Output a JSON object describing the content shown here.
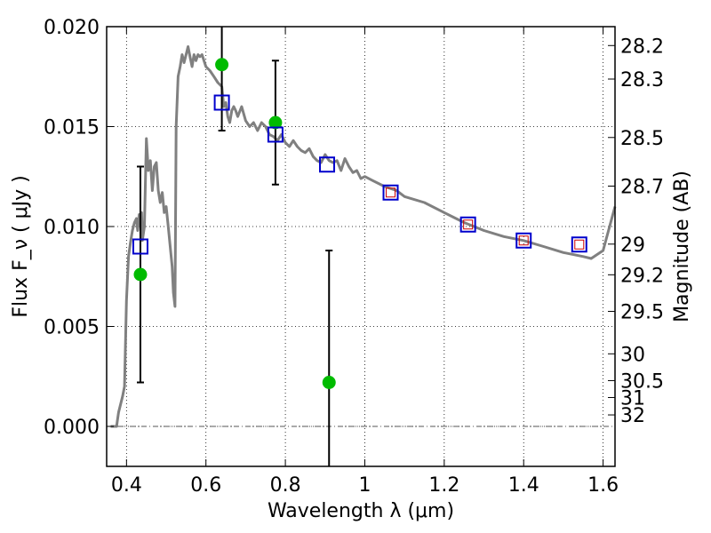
{
  "chart_data": {
    "type": "scatter",
    "xlabel": "Wavelength  λ (μm)",
    "ylabel_left": "Flux  F_ν  ( μJy )",
    "ylabel_right": "Magnitude (AB)",
    "xlim": [
      0.35,
      1.63
    ],
    "ylim": [
      -0.002,
      0.02
    ],
    "grid": true,
    "x_ticks": [
      {
        "value": 0.4,
        "label": "0.4"
      },
      {
        "value": 0.6,
        "label": "0.6"
      },
      {
        "value": 0.8,
        "label": "0.8"
      },
      {
        "value": 1.0,
        "label": "1"
      },
      {
        "value": 1.2,
        "label": "1.2"
      },
      {
        "value": 1.4,
        "label": "1.4"
      },
      {
        "value": 1.6,
        "label": "1.6"
      }
    ],
    "y_ticks": [
      {
        "value": 0.0,
        "label": "0.000"
      },
      {
        "value": 0.005,
        "label": "0.005"
      },
      {
        "value": 0.01,
        "label": "0.010"
      },
      {
        "value": 0.015,
        "label": "0.015"
      },
      {
        "value": 0.02,
        "label": "0.020"
      }
    ],
    "mag_ticks": [
      {
        "mag": 28.2,
        "label": "28.2"
      },
      {
        "mag": 28.3,
        "label": "28.3"
      },
      {
        "mag": 28.5,
        "label": "28.5"
      },
      {
        "mag": 28.7,
        "label": "28.7"
      },
      {
        "mag": 29.0,
        "label": "29"
      },
      {
        "mag": 29.2,
        "label": "29.2"
      },
      {
        "mag": 29.5,
        "label": "29.5"
      },
      {
        "mag": 30.0,
        "label": "30"
      },
      {
        "mag": 30.5,
        "label": "30.5"
      },
      {
        "mag": 31.0,
        "label": "31"
      },
      {
        "mag": 32.0,
        "label": "32"
      }
    ],
    "model_sed": {
      "color": "#808080",
      "x": [
        0.36,
        0.375,
        0.377,
        0.38,
        0.39,
        0.395,
        0.4,
        0.405,
        0.41,
        0.415,
        0.42,
        0.425,
        0.428,
        0.432,
        0.435,
        0.438,
        0.44,
        0.445,
        0.45,
        0.455,
        0.46,
        0.465,
        0.47,
        0.475,
        0.48,
        0.485,
        0.49,
        0.495,
        0.5,
        0.505,
        0.51,
        0.515,
        0.518,
        0.522,
        0.525,
        0.53,
        0.535,
        0.54,
        0.545,
        0.55,
        0.555,
        0.56,
        0.565,
        0.57,
        0.575,
        0.58,
        0.585,
        0.59,
        0.6,
        0.61,
        0.62,
        0.63,
        0.64,
        0.645,
        0.65,
        0.655,
        0.66,
        0.665,
        0.67,
        0.675,
        0.68,
        0.69,
        0.7,
        0.71,
        0.72,
        0.73,
        0.74,
        0.75,
        0.76,
        0.77,
        0.78,
        0.79,
        0.8,
        0.81,
        0.82,
        0.83,
        0.84,
        0.85,
        0.86,
        0.87,
        0.88,
        0.89,
        0.9,
        0.91,
        0.92,
        0.93,
        0.94,
        0.95,
        0.96,
        0.97,
        0.98,
        0.99,
        1.0,
        1.02,
        1.05,
        1.08,
        1.1,
        1.15,
        1.2,
        1.25,
        1.3,
        1.35,
        1.4,
        1.45,
        1.5,
        1.55,
        1.57,
        1.6,
        1.63
      ],
      "y": [
        0.0,
        0.0,
        0.0003,
        0.0007,
        0.0015,
        0.002,
        0.0063,
        0.0085,
        0.0092,
        0.0098,
        0.0102,
        0.0104,
        0.0098,
        0.0106,
        0.0102,
        0.0107,
        0.0093,
        0.01,
        0.0144,
        0.0128,
        0.0133,
        0.0118,
        0.013,
        0.0132,
        0.0118,
        0.0112,
        0.0117,
        0.0107,
        0.011,
        0.01,
        0.009,
        0.008,
        0.0067,
        0.006,
        0.015,
        0.0175,
        0.018,
        0.0186,
        0.0182,
        0.0186,
        0.019,
        0.0185,
        0.018,
        0.0186,
        0.0183,
        0.0186,
        0.0185,
        0.0186,
        0.018,
        0.0178,
        0.0175,
        0.0172,
        0.017,
        0.016,
        0.0162,
        0.0155,
        0.0152,
        0.0158,
        0.016,
        0.0158,
        0.0155,
        0.016,
        0.0153,
        0.015,
        0.0152,
        0.0148,
        0.0152,
        0.015,
        0.0146,
        0.0145,
        0.0143,
        0.0146,
        0.0142,
        0.014,
        0.0143,
        0.014,
        0.0138,
        0.0137,
        0.0139,
        0.0135,
        0.0133,
        0.0132,
        0.0136,
        0.0133,
        0.0132,
        0.0133,
        0.0128,
        0.0134,
        0.013,
        0.0127,
        0.0128,
        0.0124,
        0.0125,
        0.0123,
        0.012,
        0.0118,
        0.0115,
        0.0112,
        0.0107,
        0.0102,
        0.0098,
        0.0095,
        0.0093,
        0.009,
        0.0087,
        0.0085,
        0.0084,
        0.0088,
        0.011
      ]
    },
    "observed": {
      "marker": "circle",
      "color": "#00bb00",
      "points": [
        {
          "x": 0.435,
          "y": 0.0076,
          "err": 0.0054
        },
        {
          "x": 0.64,
          "y": 0.0181,
          "err": 0.0033
        },
        {
          "x": 0.775,
          "y": 0.0152,
          "err": 0.0031
        },
        {
          "x": 0.91,
          "y": 0.0022,
          "err": 0.0066
        }
      ]
    },
    "model_photometry": {
      "marker": "square",
      "color": "#0000cc",
      "points": [
        {
          "x": 0.435,
          "y": 0.009
        },
        {
          "x": 0.64,
          "y": 0.0162
        },
        {
          "x": 0.775,
          "y": 0.0146
        },
        {
          "x": 0.905,
          "y": 0.0131
        },
        {
          "x": 1.065,
          "y": 0.0117
        },
        {
          "x": 1.26,
          "y": 0.0101
        },
        {
          "x": 1.4,
          "y": 0.0093
        },
        {
          "x": 1.54,
          "y": 0.0091
        }
      ]
    },
    "inner_markers": {
      "marker": "square",
      "color": "#cc0000",
      "points": [
        {
          "x": 1.065,
          "y": 0.0117
        },
        {
          "x": 1.26,
          "y": 0.0101
        },
        {
          "x": 1.4,
          "y": 0.0093
        },
        {
          "x": 1.54,
          "y": 0.0091
        }
      ]
    }
  }
}
